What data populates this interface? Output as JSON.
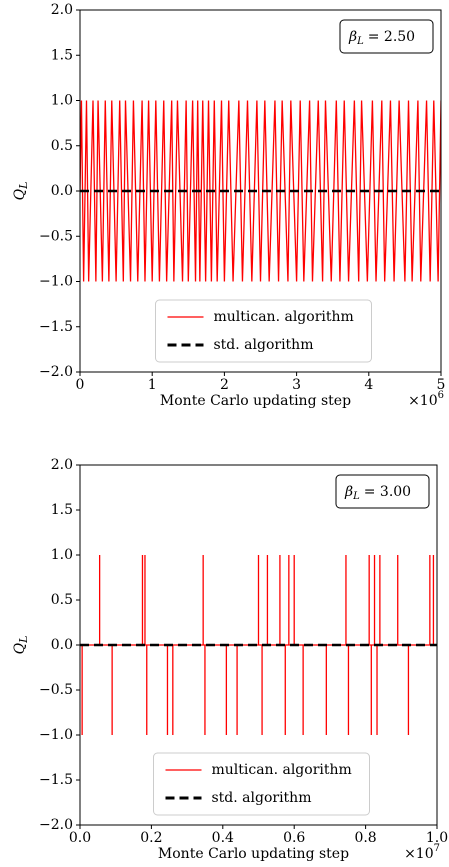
{
  "chart_data": [
    {
      "type": "line",
      "xlabel": "Monte Carlo updating step",
      "x_scale": {
        "base": "×10",
        "exponent": "6"
      },
      "ylabel": {
        "symbol": "Q",
        "subscript": "L"
      },
      "annotation": {
        "symbol": "β",
        "subscript": "L",
        "value": "= 2.50"
      },
      "xlim": [
        0,
        5
      ],
      "xticks": [
        0,
        1,
        2,
        3,
        4,
        5
      ],
      "ylim": [
        -2,
        2
      ],
      "yticks": [
        {
          "value": -2,
          "label": "−2.0"
        },
        {
          "value": -1.5,
          "label": "−1.5"
        },
        {
          "value": -1,
          "label": "−1.0"
        },
        {
          "value": -0.5,
          "label": "−0.5"
        },
        {
          "value": 0,
          "label": "0.0"
        },
        {
          "value": 0.5,
          "label": "0.5"
        },
        {
          "value": 1,
          "label": "1.0"
        },
        {
          "value": 1.5,
          "label": "1.5"
        },
        {
          "value": 2,
          "label": "2.0"
        }
      ],
      "legend": "lower center",
      "series": [
        {
          "name": "multican. algorithm",
          "color": "#ff0000",
          "dashed": false,
          "x": [
            0,
            0.02,
            0.05,
            0.09,
            0.12,
            0.18,
            0.22,
            0.25,
            0.31,
            0.35,
            0.4,
            0.44,
            0.5,
            0.55,
            0.6,
            0.63,
            0.7,
            0.74,
            0.8,
            0.86,
            0.9,
            0.95,
            1.0,
            1.05,
            1.1,
            1.16,
            1.2,
            1.27,
            1.3,
            1.35,
            1.42,
            1.47,
            1.5,
            1.56,
            1.6,
            1.63,
            1.66,
            1.7,
            1.74,
            1.78,
            1.82,
            1.86,
            1.9,
            1.96,
            2.0,
            2.06,
            2.12,
            2.2,
            2.25,
            2.32,
            2.38,
            2.45,
            2.5,
            2.56,
            2.62,
            2.7,
            2.75,
            2.8,
            2.88,
            2.92,
            3.0,
            3.05,
            3.1,
            3.18,
            3.22,
            3.3,
            3.36,
            3.4,
            3.48,
            3.55,
            3.6,
            3.66,
            3.72,
            3.8,
            3.86,
            3.9,
            3.98,
            4.05,
            4.1,
            4.18,
            4.22,
            4.3,
            4.35,
            4.42,
            4.5,
            4.55,
            4.6,
            4.68,
            4.72,
            4.8,
            4.85,
            4.9,
            4.96,
            5.0
          ],
          "values": [
            0,
            1,
            -1,
            1,
            -1,
            1,
            -1,
            1,
            -1,
            1,
            -1,
            1,
            -1,
            1,
            -1,
            1,
            -1,
            1,
            -1,
            1,
            -1,
            1,
            -1,
            1,
            -1,
            1,
            -1,
            1,
            -1,
            1,
            -1,
            1,
            -1,
            1,
            -1,
            1,
            -1,
            1,
            -1,
            1,
            -1,
            1,
            -1,
            1,
            -1,
            1,
            -1,
            1,
            -1,
            1,
            -1,
            1,
            -1,
            1,
            -1,
            1,
            -1,
            1,
            -1,
            1,
            -1,
            1,
            -1,
            1,
            -1,
            1,
            -1,
            1,
            -1,
            1,
            -1,
            1,
            -1,
            1,
            -1,
            1,
            -1,
            1,
            -1,
            1,
            -1,
            1,
            -1,
            1,
            -1,
            1,
            -1,
            1,
            -1,
            1,
            -1,
            1,
            -1,
            1
          ]
        },
        {
          "name": "std. algorithm",
          "color": "#000000",
          "dashed": true,
          "x": [
            0,
            5
          ],
          "values": [
            0,
            0
          ]
        }
      ]
    },
    {
      "type": "line",
      "xlabel": "Monte Carlo updating step",
      "x_scale": {
        "base": "×10",
        "exponent": "7"
      },
      "ylabel": {
        "symbol": "Q",
        "subscript": "L"
      },
      "annotation": {
        "symbol": "β",
        "subscript": "L",
        "value": "= 3.00"
      },
      "xlim": [
        0,
        1
      ],
      "xticks": [
        {
          "value": 0,
          "label": "0.0"
        },
        {
          "value": 0.2,
          "label": "0.2"
        },
        {
          "value": 0.4,
          "label": "0.4"
        },
        {
          "value": 0.6,
          "label": "0.6"
        },
        {
          "value": 0.8,
          "label": "0.8"
        },
        {
          "value": 1,
          "label": "1.0"
        }
      ],
      "ylim": [
        -2,
        2
      ],
      "yticks": [
        {
          "value": -2,
          "label": "−2.0"
        },
        {
          "value": -1.5,
          "label": "−1.5"
        },
        {
          "value": -1,
          "label": "−1.0"
        },
        {
          "value": -0.5,
          "label": "−0.5"
        },
        {
          "value": 0,
          "label": "0.0"
        },
        {
          "value": 0.5,
          "label": "0.5"
        },
        {
          "value": 1,
          "label": "1.0"
        },
        {
          "value": 1.5,
          "label": "1.5"
        },
        {
          "value": 2,
          "label": "2.0"
        }
      ],
      "legend": "lower center",
      "series": [
        {
          "name": "multican. algorithm",
          "color": "#ff0000",
          "dashed": false,
          "x": [
            0,
            0.006,
            0.006,
            0.006,
            0.055,
            0.055,
            0.055,
            0.09,
            0.09,
            0.09,
            0.175,
            0.175,
            0.175,
            0.182,
            0.182,
            0.182,
            0.187,
            0.187,
            0.187,
            0.245,
            0.245,
            0.245,
            0.26,
            0.26,
            0.26,
            0.345,
            0.345,
            0.345,
            0.35,
            0.35,
            0.35,
            0.41,
            0.41,
            0.41,
            0.44,
            0.44,
            0.44,
            0.5,
            0.5,
            0.5,
            0.51,
            0.51,
            0.51,
            0.525,
            0.525,
            0.525,
            0.56,
            0.56,
            0.56,
            0.575,
            0.575,
            0.575,
            0.585,
            0.585,
            0.585,
            0.6,
            0.6,
            0.6,
            0.625,
            0.625,
            0.625,
            0.69,
            0.69,
            0.69,
            0.745,
            0.745,
            0.745,
            0.752,
            0.752,
            0.752,
            0.81,
            0.81,
            0.81,
            0.816,
            0.816,
            0.816,
            0.825,
            0.825,
            0.825,
            0.832,
            0.832,
            0.832,
            0.84,
            0.84,
            0.84,
            0.89,
            0.89,
            0.89,
            0.92,
            0.92,
            0.92,
            0.98,
            0.98,
            0.98,
            0.99,
            0.99,
            0.99,
            1.0
          ],
          "values": [
            0,
            0,
            -1,
            0,
            0,
            1,
            0,
            0,
            -1,
            0,
            0,
            1,
            0,
            0,
            1,
            0,
            0,
            -1,
            0,
            0,
            -1,
            0,
            0,
            -1,
            0,
            0,
            1,
            0,
            0,
            -1,
            0,
            0,
            -1,
            0,
            0,
            -1,
            0,
            0,
            1,
            0,
            0,
            -1,
            0,
            0,
            1,
            0,
            0,
            1,
            0,
            0,
            -1,
            0,
            0,
            1,
            0,
            0,
            1,
            0,
            0,
            -1,
            0,
            0,
            -1,
            0,
            0,
            1,
            0,
            0,
            -1,
            0,
            0,
            1,
            0,
            0,
            -1,
            0,
            0,
            1,
            0,
            0,
            -1,
            0,
            0,
            1,
            0,
            0,
            1,
            0,
            0,
            -1,
            0,
            0,
            1,
            0,
            0,
            1,
            0,
            0
          ]
        },
        {
          "name": "std. algorithm",
          "color": "#000000",
          "dashed": true,
          "x": [
            0,
            1
          ],
          "values": [
            0,
            0
          ]
        }
      ]
    }
  ]
}
